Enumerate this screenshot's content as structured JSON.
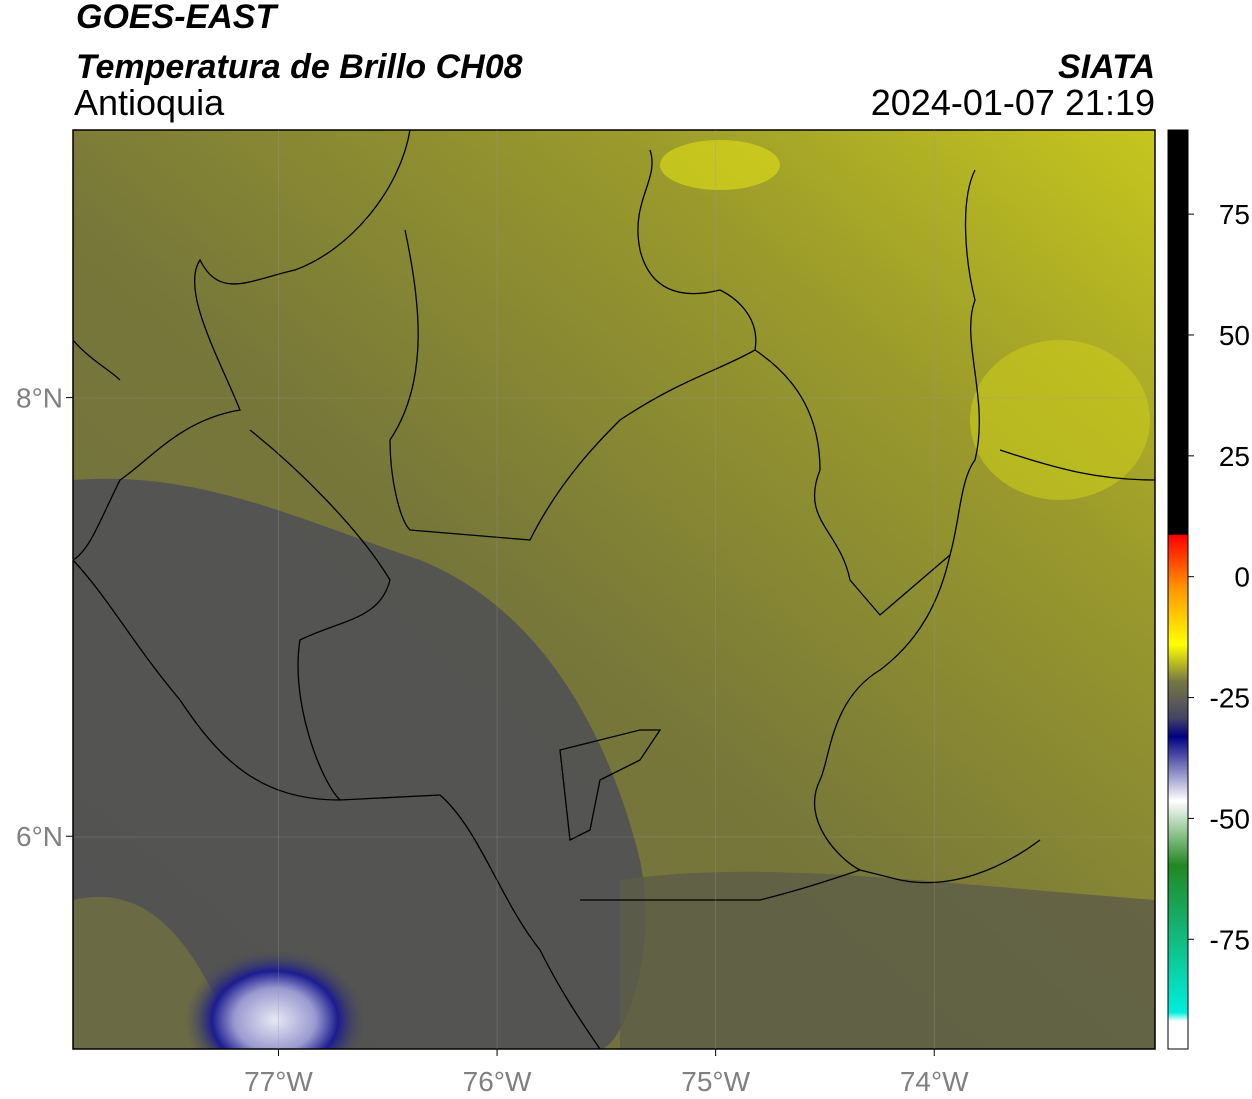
{
  "header": {
    "satellite": "GOES-EAST",
    "product": "Temperatura de Brillo CH08",
    "institution": "SIATA",
    "region": "Antioquia",
    "datetime": "2024-01-07 21:19"
  },
  "map": {
    "lonlim": [
      -77.94,
      -72.99
    ],
    "latlim": [
      5.03,
      9.22
    ],
    "lonticks": [
      {
        "value": -77,
        "label": "77°W"
      },
      {
        "value": -76,
        "label": "76°W"
      },
      {
        "value": -75,
        "label": "75°W"
      },
      {
        "value": -74,
        "label": "74°W"
      }
    ],
    "latticks": [
      {
        "value": 8,
        "label": "8°N"
      },
      {
        "value": 6,
        "label": "6°N"
      }
    ]
  },
  "colorbar": {
    "lim": [
      -97.7,
      92.4
    ],
    "ticks": [
      75,
      50,
      25,
      0,
      -25,
      -50,
      -75
    ]
  }
}
